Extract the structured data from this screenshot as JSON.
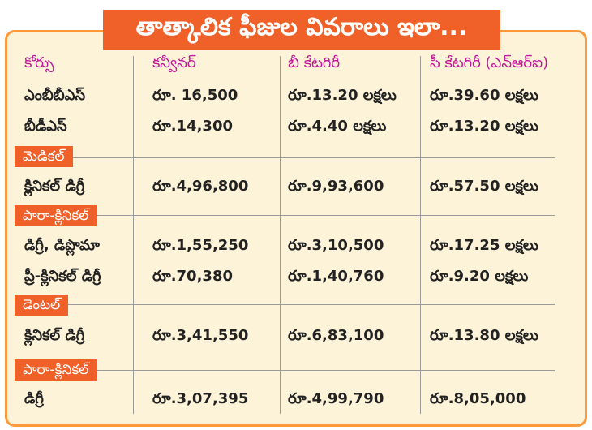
{
  "title": "తాత్కాలిక ఫీజుల వివరాలు ఇలా...",
  "headers": [
    "కోర్సు",
    "కన్వీనర్",
    "బీ కేటగిరీ",
    "సీ కేటగిరీ (ఎన్‌ఆర్‌ఐ)"
  ],
  "rows": [
    [
      "ఎంబీబీఎస్",
      "రూ. 16,500",
      "రూ.13.20 లక్షలు",
      "రూ.39.60 లక్షలు"
    ],
    [
      "బీడీఎస్",
      "రూ.14,300",
      "రూ.4.40 లక్షలు",
      "రూ.13.20 లక్షలు"
    ]
  ],
  "sections": [
    {
      "label": "మెడికల్",
      "rows": [
        [
          "క్లినికల్ డిగ్రీ",
          "రూ.4,96,800",
          "రూ.9,93,600",
          "రూ.57.50 లక్షలు"
        ]
      ]
    },
    {
      "label": "పారా-క్లినికల్",
      "rows": [
        [
          "డిగ్రీ, డిప్లొమా",
          "రూ.1,55,250",
          "రూ.3,10,500",
          "రూ.17.25 లక్షలు"
        ],
        [
          "ప్రీ-క్లినికల్ డిగ్రీ",
          "రూ.70,380",
          "రూ.1,40,760",
          "రూ.9.20 లక్షలు"
        ]
      ]
    },
    {
      "label": "డెంటల్",
      "rows": [
        [
          "క్లినికల్ డిగ్రీ",
          "రూ.3,41,550",
          "రూ.6,83,100",
          "రూ.13.80 లక్షలు"
        ]
      ]
    },
    {
      "label": "పారా-క్లినికల్",
      "rows": [
        [
          "డిగ్రీ",
          "రూ.3,07,395",
          "రూ.4,99,790",
          "రూ.8,05,000"
        ]
      ]
    }
  ],
  "colors": {
    "accent": "#f0612a",
    "border": "#ff9a3c",
    "background": "#fdf3d9",
    "header_text": "#c2199a"
  }
}
